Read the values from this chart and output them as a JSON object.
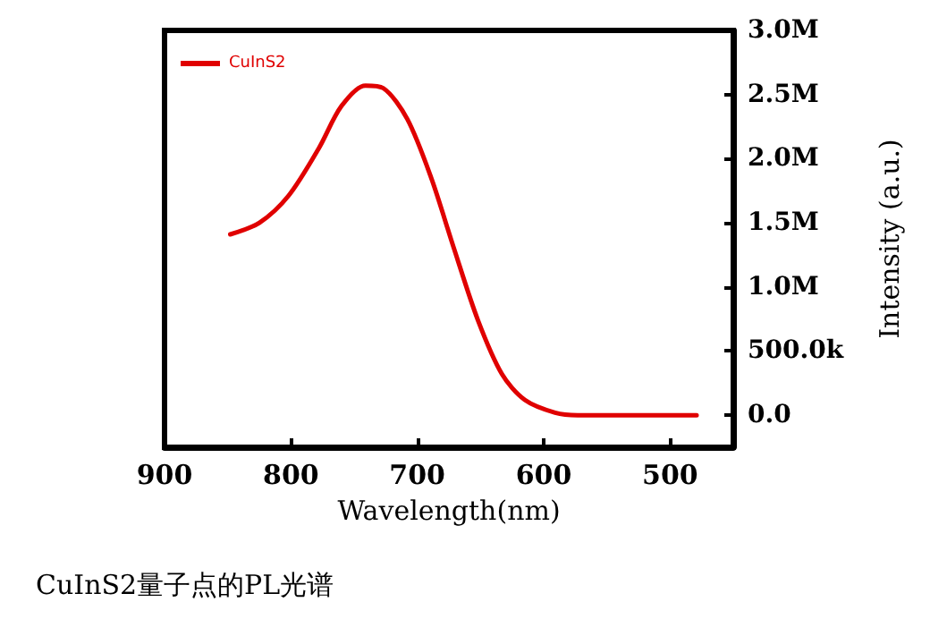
{
  "chart_data": {
    "type": "line",
    "xlabel": "Wavelength(nm)",
    "ylabel": "Intensity (a.u.)",
    "annotations": [
      "CuInS2量子点的PL光谱"
    ],
    "x": [
      848,
      825,
      802,
      778,
      760,
      741,
      727,
      708,
      689,
      671,
      652,
      633,
      615,
      591,
      573,
      479
    ],
    "series": [
      {
        "name": "CuInS2",
        "color": "#e00000",
        "values": [
          1410000,
          1500000,
          1710000,
          2080000,
          2410000,
          2570000,
          2550000,
          2310000,
          1850000,
          1300000,
          740000,
          320000,
          120000,
          20000,
          0,
          0
        ]
      }
    ],
    "xlim": [
      900,
      450
    ],
    "xticks": [
      900,
      800,
      700,
      600,
      500
    ],
    "ylim": [
      -250000,
      3000000
    ],
    "yticks": [
      {
        "value": 0,
        "label": "0.0"
      },
      {
        "value": 500000,
        "label": "500.0k"
      },
      {
        "value": 1000000,
        "label": "1.0M"
      },
      {
        "value": 1500000,
        "label": "1.5M"
      },
      {
        "value": 2000000,
        "label": "2.0M"
      },
      {
        "value": 2500000,
        "label": "2.5M"
      },
      {
        "value": 3000000,
        "label": "3.0M"
      }
    ],
    "grid": false,
    "legend": "top left",
    "marker": "none",
    "line_style": "solid"
  }
}
